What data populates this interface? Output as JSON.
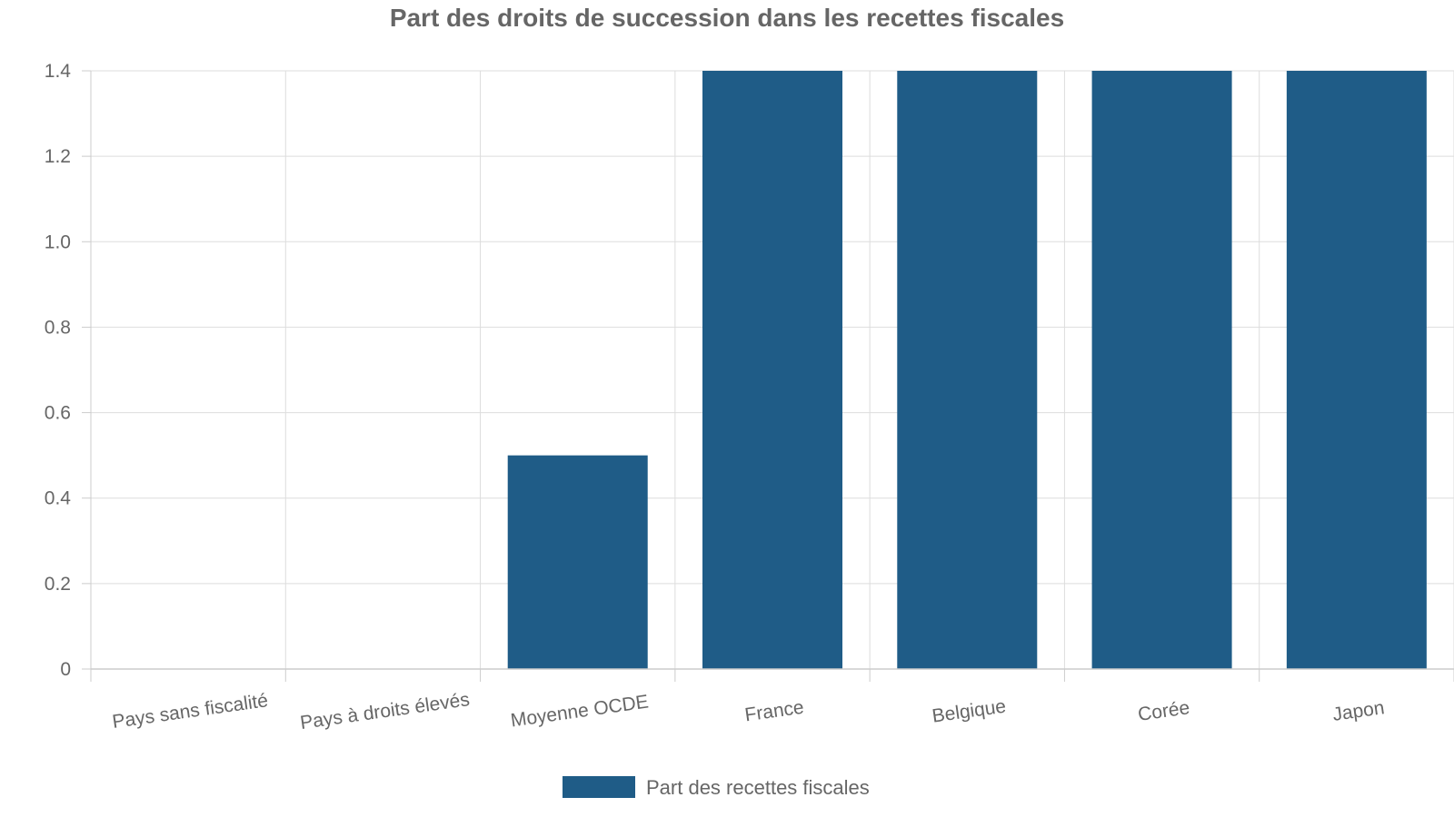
{
  "chart_data": {
    "type": "bar",
    "title": "Part des droits de succession dans les recettes fiscales",
    "xlabel": "",
    "ylabel": "",
    "categories": [
      "Pays sans fiscalité",
      "Pays à droits élevés",
      "Moyenne OCDE",
      "France",
      "Belgique",
      "Corée",
      "Japon"
    ],
    "series": [
      {
        "name": "Part des recettes fiscales",
        "values": [
          0,
          0,
          0.5,
          1.4,
          1.4,
          1.4,
          1.4
        ],
        "color": "#1f5c87"
      }
    ],
    "ylim": [
      0,
      1.4
    ],
    "yticks": [
      "0",
      "0.2",
      "0.4",
      "0.6",
      "0.8",
      "1.0",
      "1.2",
      "1.4"
    ],
    "grid": true,
    "legend_position": "bottom-center"
  },
  "colors": {
    "bar": "#1f5c87",
    "grid": "#dddddd",
    "text": "#666666"
  }
}
